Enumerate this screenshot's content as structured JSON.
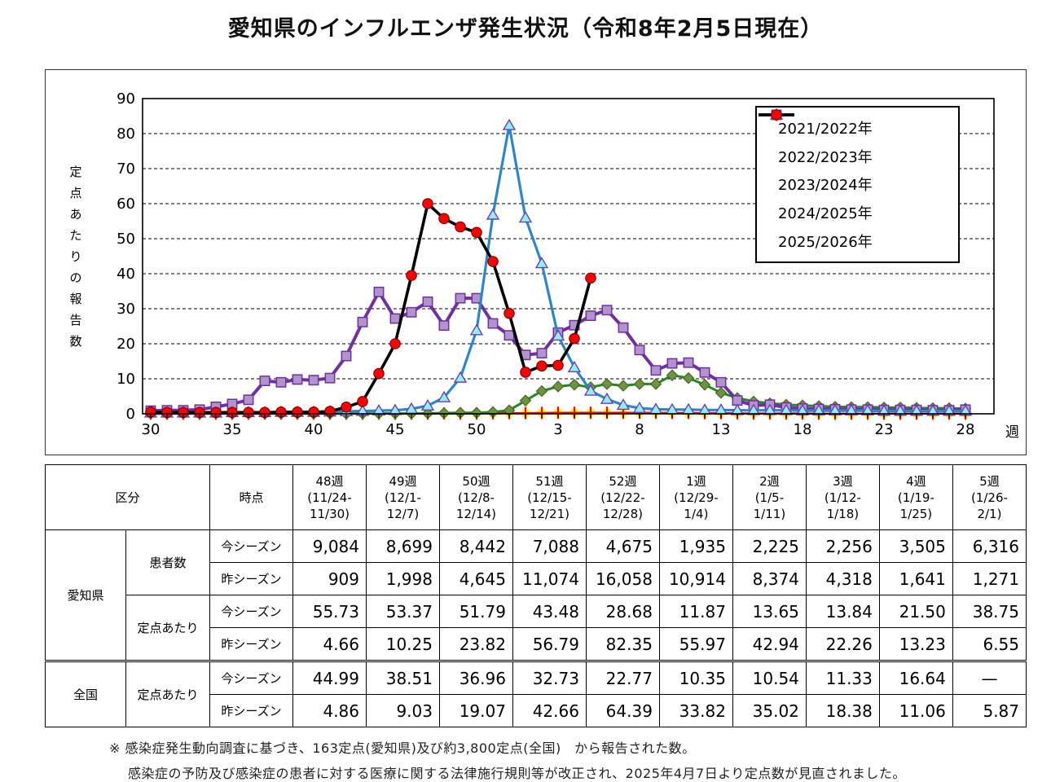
{
  "title": "愛知県のインフルエンザ発生状況（令和8年2月5日現在）",
  "chart_data": {
    "type": "line",
    "title": "",
    "xlabel": "",
    "ylabel": "定点あたりの報告数",
    "x_unit": "週",
    "ylim": [
      0,
      90
    ],
    "y_step": 10,
    "grid": "horizontal-dashed",
    "legend_position": "top-right",
    "x_tick_labels": [
      "30",
      "35",
      "40",
      "45",
      "50",
      "3",
      "8",
      "13",
      "18",
      "23",
      "28"
    ],
    "categories": [
      "30",
      "31",
      "32",
      "33",
      "34",
      "35",
      "36",
      "37",
      "38",
      "39",
      "40",
      "41",
      "42",
      "43",
      "44",
      "45",
      "46",
      "47",
      "48",
      "49",
      "50",
      "51",
      "52",
      "1",
      "2",
      "3",
      "4",
      "5",
      "6",
      "7",
      "8",
      "9",
      "10",
      "11",
      "12",
      "13",
      "14",
      "15",
      "16",
      "17",
      "18",
      "19",
      "20",
      "21",
      "22",
      "23",
      "24",
      "25",
      "26",
      "27",
      "28"
    ],
    "series": [
      {
        "name": "2021/2022年",
        "marker": "plus",
        "line_color": "#FF0000",
        "line_width": 2.4,
        "marker_fill": "#FFFF00",
        "marker_stroke": "#FF0000",
        "values": [
          0.05,
          0.05,
          0.05,
          0.05,
          0.05,
          0.05,
          0.05,
          0.05,
          0.05,
          0.05,
          0.05,
          0.05,
          0.05,
          0.05,
          0.05,
          0.05,
          0.05,
          0.05,
          0.1,
          0.1,
          0.1,
          0.15,
          0.2,
          0.2,
          0.25,
          0.3,
          0.3,
          0.3,
          0.3,
          0.3,
          0.3,
          0.3,
          0.25,
          0.25,
          0.2,
          0.2,
          0.15,
          0.1,
          0.1,
          0.1,
          0.1,
          0.05,
          0.05,
          0.05,
          0.05,
          0.05,
          0.05,
          0.05,
          0.05,
          0.05,
          0.05
        ]
      },
      {
        "name": "2022/2023年",
        "marker": "diamond",
        "line_color": "#1E8C1E",
        "line_width": 3,
        "marker_fill": "#6E9343",
        "marker_stroke": "#4C6A28",
        "values": [
          0.05,
          0.05,
          0.05,
          0.05,
          0.05,
          0.05,
          0.05,
          0.05,
          0.05,
          0.05,
          0.05,
          0.05,
          0.05,
          0.05,
          0.1,
          0.1,
          0.1,
          0.15,
          0.2,
          0.3,
          0.3,
          0.5,
          1.0,
          3.8,
          6.5,
          7.8,
          8.3,
          7.6,
          8.5,
          8.0,
          8.5,
          8.5,
          11.0,
          10.2,
          8.3,
          6.0,
          4.5,
          3.5,
          3.0,
          2.6,
          2.4,
          2.2,
          2.0,
          1.9,
          1.9,
          1.8,
          1.8,
          1.7,
          1.6,
          1.6,
          1.5
        ]
      },
      {
        "name": "2023/2024年",
        "marker": "square",
        "line_color": "#7030A0",
        "line_width": 4,
        "marker_fill": "#B294CC",
        "marker_stroke": "#7030A0",
        "values": [
          0.9,
          1.0,
          1.0,
          1.2,
          2.0,
          2.8,
          4.0,
          9.4,
          9.0,
          9.8,
          9.6,
          10.2,
          16.5,
          26.2,
          34.8,
          27.2,
          29.0,
          32.0,
          25.2,
          33.0,
          33.0,
          25.8,
          22.4,
          16.8,
          17.3,
          23.2,
          25.3,
          28.0,
          29.6,
          24.6,
          18.2,
          12.4,
          14.4,
          14.6,
          11.8,
          9.0,
          3.8,
          2.4,
          2.6,
          1.8,
          1.5,
          1.4,
          1.3,
          1.2,
          1.2,
          1.1,
          1.1,
          1.1,
          1.0,
          1.0,
          1.2
        ]
      },
      {
        "name": "2024/2025年",
        "marker": "triangle",
        "line_color": "#2E86C8",
        "line_width": 3.2,
        "marker_fill": "#8FEFF5",
        "marker_stroke": "#7040B0",
        "values": [
          0.3,
          0.3,
          0.3,
          0.3,
          0.3,
          0.4,
          0.4,
          0.4,
          0.5,
          0.5,
          0.5,
          0.6,
          0.7,
          0.8,
          0.9,
          1.0,
          1.4,
          2.3,
          4.66,
          10.25,
          23.82,
          56.79,
          82.35,
          55.97,
          42.94,
          22.26,
          13.23,
          6.55,
          4.2,
          2.5,
          1.6,
          1.3,
          1.2,
          1.2,
          1.1,
          1.1,
          1.0,
          1.0,
          1.0,
          1.0,
          0.9,
          0.9,
          0.9,
          0.9,
          0.9,
          0.8,
          0.8,
          0.8,
          0.8,
          0.8,
          0.8
        ]
      },
      {
        "name": "2025/2026年",
        "marker": "circle",
        "line_color": "#000000",
        "line_width": 3.6,
        "marker_fill": "#FF0000",
        "marker_stroke": "#7F0000",
        "values": [
          0.5,
          0.4,
          0.4,
          0.4,
          0.4,
          0.4,
          0.4,
          0.4,
          0.5,
          0.5,
          0.5,
          0.7,
          1.9,
          3.5,
          11.5,
          20.0,
          39.5,
          60.0,
          55.73,
          53.37,
          51.79,
          43.48,
          28.68,
          11.87,
          13.65,
          13.84,
          21.5,
          38.75,
          null,
          null,
          null,
          null,
          null,
          null,
          null,
          null,
          null,
          null,
          null,
          null,
          null,
          null,
          null,
          null,
          null,
          null,
          null,
          null,
          null,
          null,
          null
        ]
      }
    ]
  },
  "table": {
    "header": {
      "col1": "区分",
      "col2": "時点",
      "weeks": [
        {
          "week": "48週",
          "range": "(11/24-11/30)"
        },
        {
          "week": "49週",
          "range": "(12/1-12/7)"
        },
        {
          "week": "50週",
          "range": "(12/8-12/14)"
        },
        {
          "week": "51週",
          "range": "(12/15-12/21)"
        },
        {
          "week": "52週",
          "range": "(12/22-12/28)"
        },
        {
          "week": "1週",
          "range": "(12/29-1/4)"
        },
        {
          "week": "2週",
          "range": "(1/5-1/11)"
        },
        {
          "week": "3週",
          "range": "(1/12-1/18)"
        },
        {
          "week": "4週",
          "range": "(1/19-1/25)"
        },
        {
          "week": "5週",
          "range": "(1/26-2/1)"
        }
      ]
    },
    "groups": [
      {
        "region": "愛知県",
        "metrics": [
          {
            "metric": "患者数",
            "rows": [
              {
                "season": "今シーズン",
                "values": [
                  "9,084",
                  "8,699",
                  "8,442",
                  "7,088",
                  "4,675",
                  "1,935",
                  "2,225",
                  "2,256",
                  "3,505",
                  "6,316"
                ]
              },
              {
                "season": "昨シーズン",
                "values": [
                  "909",
                  "1,998",
                  "4,645",
                  "11,074",
                  "16,058",
                  "10,914",
                  "8,374",
                  "4,318",
                  "1,641",
                  "1,271"
                ]
              }
            ]
          },
          {
            "metric": "定点あたり",
            "rows": [
              {
                "season": "今シーズン",
                "values": [
                  "55.73",
                  "53.37",
                  "51.79",
                  "43.48",
                  "28.68",
                  "11.87",
                  "13.65",
                  "13.84",
                  "21.50",
                  "38.75"
                ]
              },
              {
                "season": "昨シーズン",
                "values": [
                  "4.66",
                  "10.25",
                  "23.82",
                  "56.79",
                  "82.35",
                  "55.97",
                  "42.94",
                  "22.26",
                  "13.23",
                  "6.55"
                ]
              }
            ]
          }
        ]
      },
      {
        "region": "全国",
        "metrics": [
          {
            "metric": "定点あたり",
            "rows": [
              {
                "season": "今シーズン",
                "values": [
                  "44.99",
                  "38.51",
                  "36.96",
                  "32.73",
                  "22.77",
                  "10.35",
                  "10.54",
                  "11.33",
                  "16.64",
                  "—"
                ]
              },
              {
                "season": "昨シーズン",
                "values": [
                  "4.86",
                  "9.03",
                  "19.07",
                  "42.66",
                  "64.39",
                  "33.82",
                  "35.02",
                  "18.38",
                  "11.06",
                  "5.87"
                ]
              }
            ]
          }
        ]
      }
    ]
  },
  "footnotes": [
    "※ 感染症発生動向調査に基づき、163定点(愛知県)及び約3,800定点(全国)　から報告された数。",
    "感染症の予防及び感染症の患者に対する医療に関する法律施行規則等が改正され、2025年4月7日より定点数が見直されました。"
  ]
}
